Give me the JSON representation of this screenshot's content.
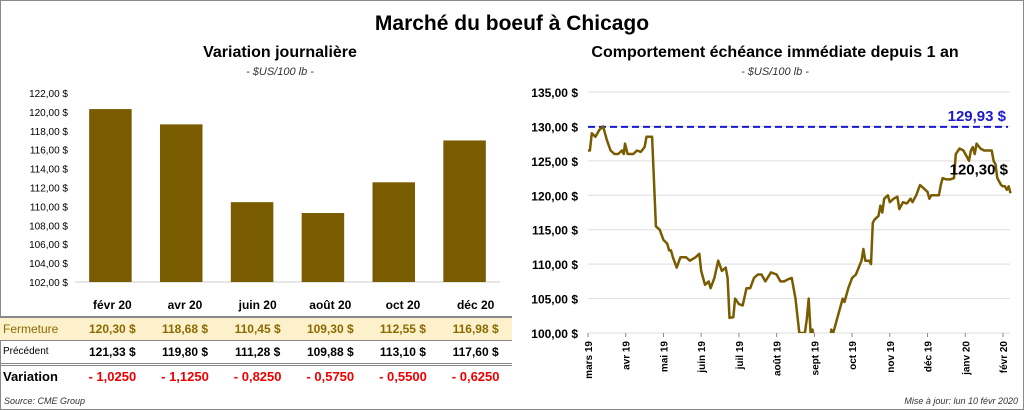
{
  "title": "Marché du boeuf à Chicago",
  "left": {
    "title": "Variation journalière",
    "unit": "- $US/100 lb -"
  },
  "right": {
    "title": "Comportement  échéance immédiate depuis 1 an",
    "unit": "- $US/100 lb -"
  },
  "table": {
    "row_labels": [
      "Fermeture",
      "Précédent",
      "Variation"
    ],
    "months": [
      "févr 20",
      "avr 20",
      "juin 20",
      "août 20",
      "oct 20",
      "déc 20"
    ],
    "fermeture": [
      "120,30  $",
      "118,68  $",
      "110,45  $",
      "109,30  $",
      "112,55  $",
      "116,98  $"
    ],
    "precedent": [
      "121,33  $",
      "119,80  $",
      "111,28  $",
      "109,88  $",
      "113,10  $",
      "117,60  $"
    ],
    "variation": [
      "- 1,0250",
      "- 1,1250",
      "- 0,8250",
      "- 0,5750",
      "- 0,5500",
      "- 0,6250"
    ]
  },
  "source": "Source: CME Group",
  "updated": "Mise à jour: lun 10 févr 2020",
  "chart_data": [
    {
      "type": "bar",
      "title": "Variation journalière",
      "ylabel": "$US/100 lb",
      "categories": [
        "févr 20",
        "avr 20",
        "juin 20",
        "août 20",
        "oct 20",
        "déc 20"
      ],
      "values": [
        120.3,
        118.68,
        110.45,
        109.3,
        112.55,
        116.98
      ],
      "ylim": [
        102,
        122
      ],
      "yticks": [
        "102,00 $",
        "104,00 $",
        "106,00 $",
        "108,00 $",
        "110,00 $",
        "112,00 $",
        "114,00 $",
        "116,00 $",
        "118,00 $",
        "120,00 $",
        "122,00 $"
      ],
      "color": "#7a5c00"
    },
    {
      "type": "line",
      "title": "Comportement échéance immédiate depuis 1 an",
      "ylim": [
        100,
        135
      ],
      "yticks": [
        "100,00 $",
        "105,00 $",
        "110,00 $",
        "115,00 $",
        "120,00 $",
        "125,00 $",
        "130,00 $",
        "135,00 $"
      ],
      "xticks": [
        "mars 19",
        "avr 19",
        "mai 19",
        "juin 19",
        "juil 19",
        "août 19",
        "sept 19",
        "oct 19",
        "nov 19",
        "déc 19",
        "janv 20",
        "févr 20"
      ],
      "reference": {
        "value": 129.93,
        "label": "129,93 $",
        "color": "#1a1acc"
      },
      "last_label": "120,30 $",
      "color": "#7a5c00",
      "x_months": [
        0,
        0.05,
        0.1,
        0.2,
        0.3,
        0.4,
        0.5,
        0.6,
        0.7,
        0.8,
        0.9,
        0.95,
        0.98,
        1.05,
        1.2,
        1.3,
        1.4,
        1.5,
        1.55,
        1.7,
        1.8,
        1.9,
        2.0,
        2.1,
        2.15,
        2.2,
        2.25,
        2.35,
        2.45,
        2.6,
        2.7,
        2.85,
        2.95,
        3.0,
        3.1,
        3.2,
        3.25,
        3.35,
        3.45,
        3.55,
        3.65,
        3.7,
        3.75,
        3.85,
        3.9,
        4.0,
        4.1,
        4.2,
        4.3,
        4.4,
        4.5,
        4.6,
        4.7,
        4.85,
        5.0,
        5.1,
        5.2,
        5.3,
        5.4,
        5.5,
        5.6,
        5.75,
        5.8,
        5.85,
        5.9,
        5.95,
        6.0,
        6.4,
        6.45,
        6.5,
        6.6,
        6.65,
        6.75,
        6.8,
        6.9,
        7.0,
        7.1,
        7.25,
        7.3,
        7.35,
        7.45,
        7.5,
        7.55,
        7.6,
        7.7,
        7.75,
        7.8,
        7.85,
        7.95,
        8.0,
        8.1,
        8.2,
        8.25,
        8.35,
        8.45,
        8.55,
        8.6,
        8.7,
        8.8,
        8.9,
        9.0,
        9.05,
        9.1,
        9.3,
        9.35,
        9.4,
        9.5,
        9.6,
        9.7,
        9.75,
        9.85,
        9.95,
        10.05,
        10.1,
        10.15,
        10.2,
        10.25,
        10.3,
        10.4,
        10.5,
        10.6,
        10.7,
        10.75,
        10.8,
        10.85,
        10.95,
        11.0,
        11.05,
        11.1,
        11.15,
        11.2
      ],
      "values": [
        126.5,
        126.5,
        129,
        128.5,
        129.5,
        130,
        128,
        126.5,
        126,
        126,
        126.5,
        126,
        127.5,
        126,
        126,
        126.5,
        126.3,
        127,
        128.5,
        128.5,
        115.5,
        115,
        113.5,
        113,
        112,
        112,
        111,
        109.5,
        111,
        111,
        110.5,
        111,
        111.5,
        109,
        107,
        107.5,
        106.5,
        108,
        110.5,
        109,
        109.5,
        108,
        102.2,
        102.3,
        105,
        104.2,
        104,
        106.5,
        106.5,
        108,
        108.5,
        108.5,
        107.5,
        108.8,
        108.5,
        107.5,
        107.5,
        107.8,
        108,
        105,
        100,
        100,
        102,
        105,
        100,
        100.5,
        98,
        98,
        100.5,
        100,
        102,
        103,
        105,
        104.5,
        106.5,
        108,
        108.5,
        110.5,
        112.2,
        110.5,
        110.5,
        110,
        116,
        116.5,
        117,
        118.5,
        117.5,
        119.5,
        120,
        119,
        119.5,
        119.8,
        118,
        119,
        118.8,
        119.5,
        119,
        120,
        121.5,
        121,
        120.5,
        119.5,
        120,
        120,
        121.5,
        122.5,
        122.3,
        122.3,
        122.5,
        126,
        126.8,
        126.5,
        125.5,
        125,
        126.5,
        127,
        126,
        127.5,
        126.8,
        126.5,
        126.5,
        126.5,
        125,
        124.5,
        122.5,
        121.5,
        121.3,
        121.3,
        120.8,
        121.3,
        120.3
      ]
    }
  ]
}
